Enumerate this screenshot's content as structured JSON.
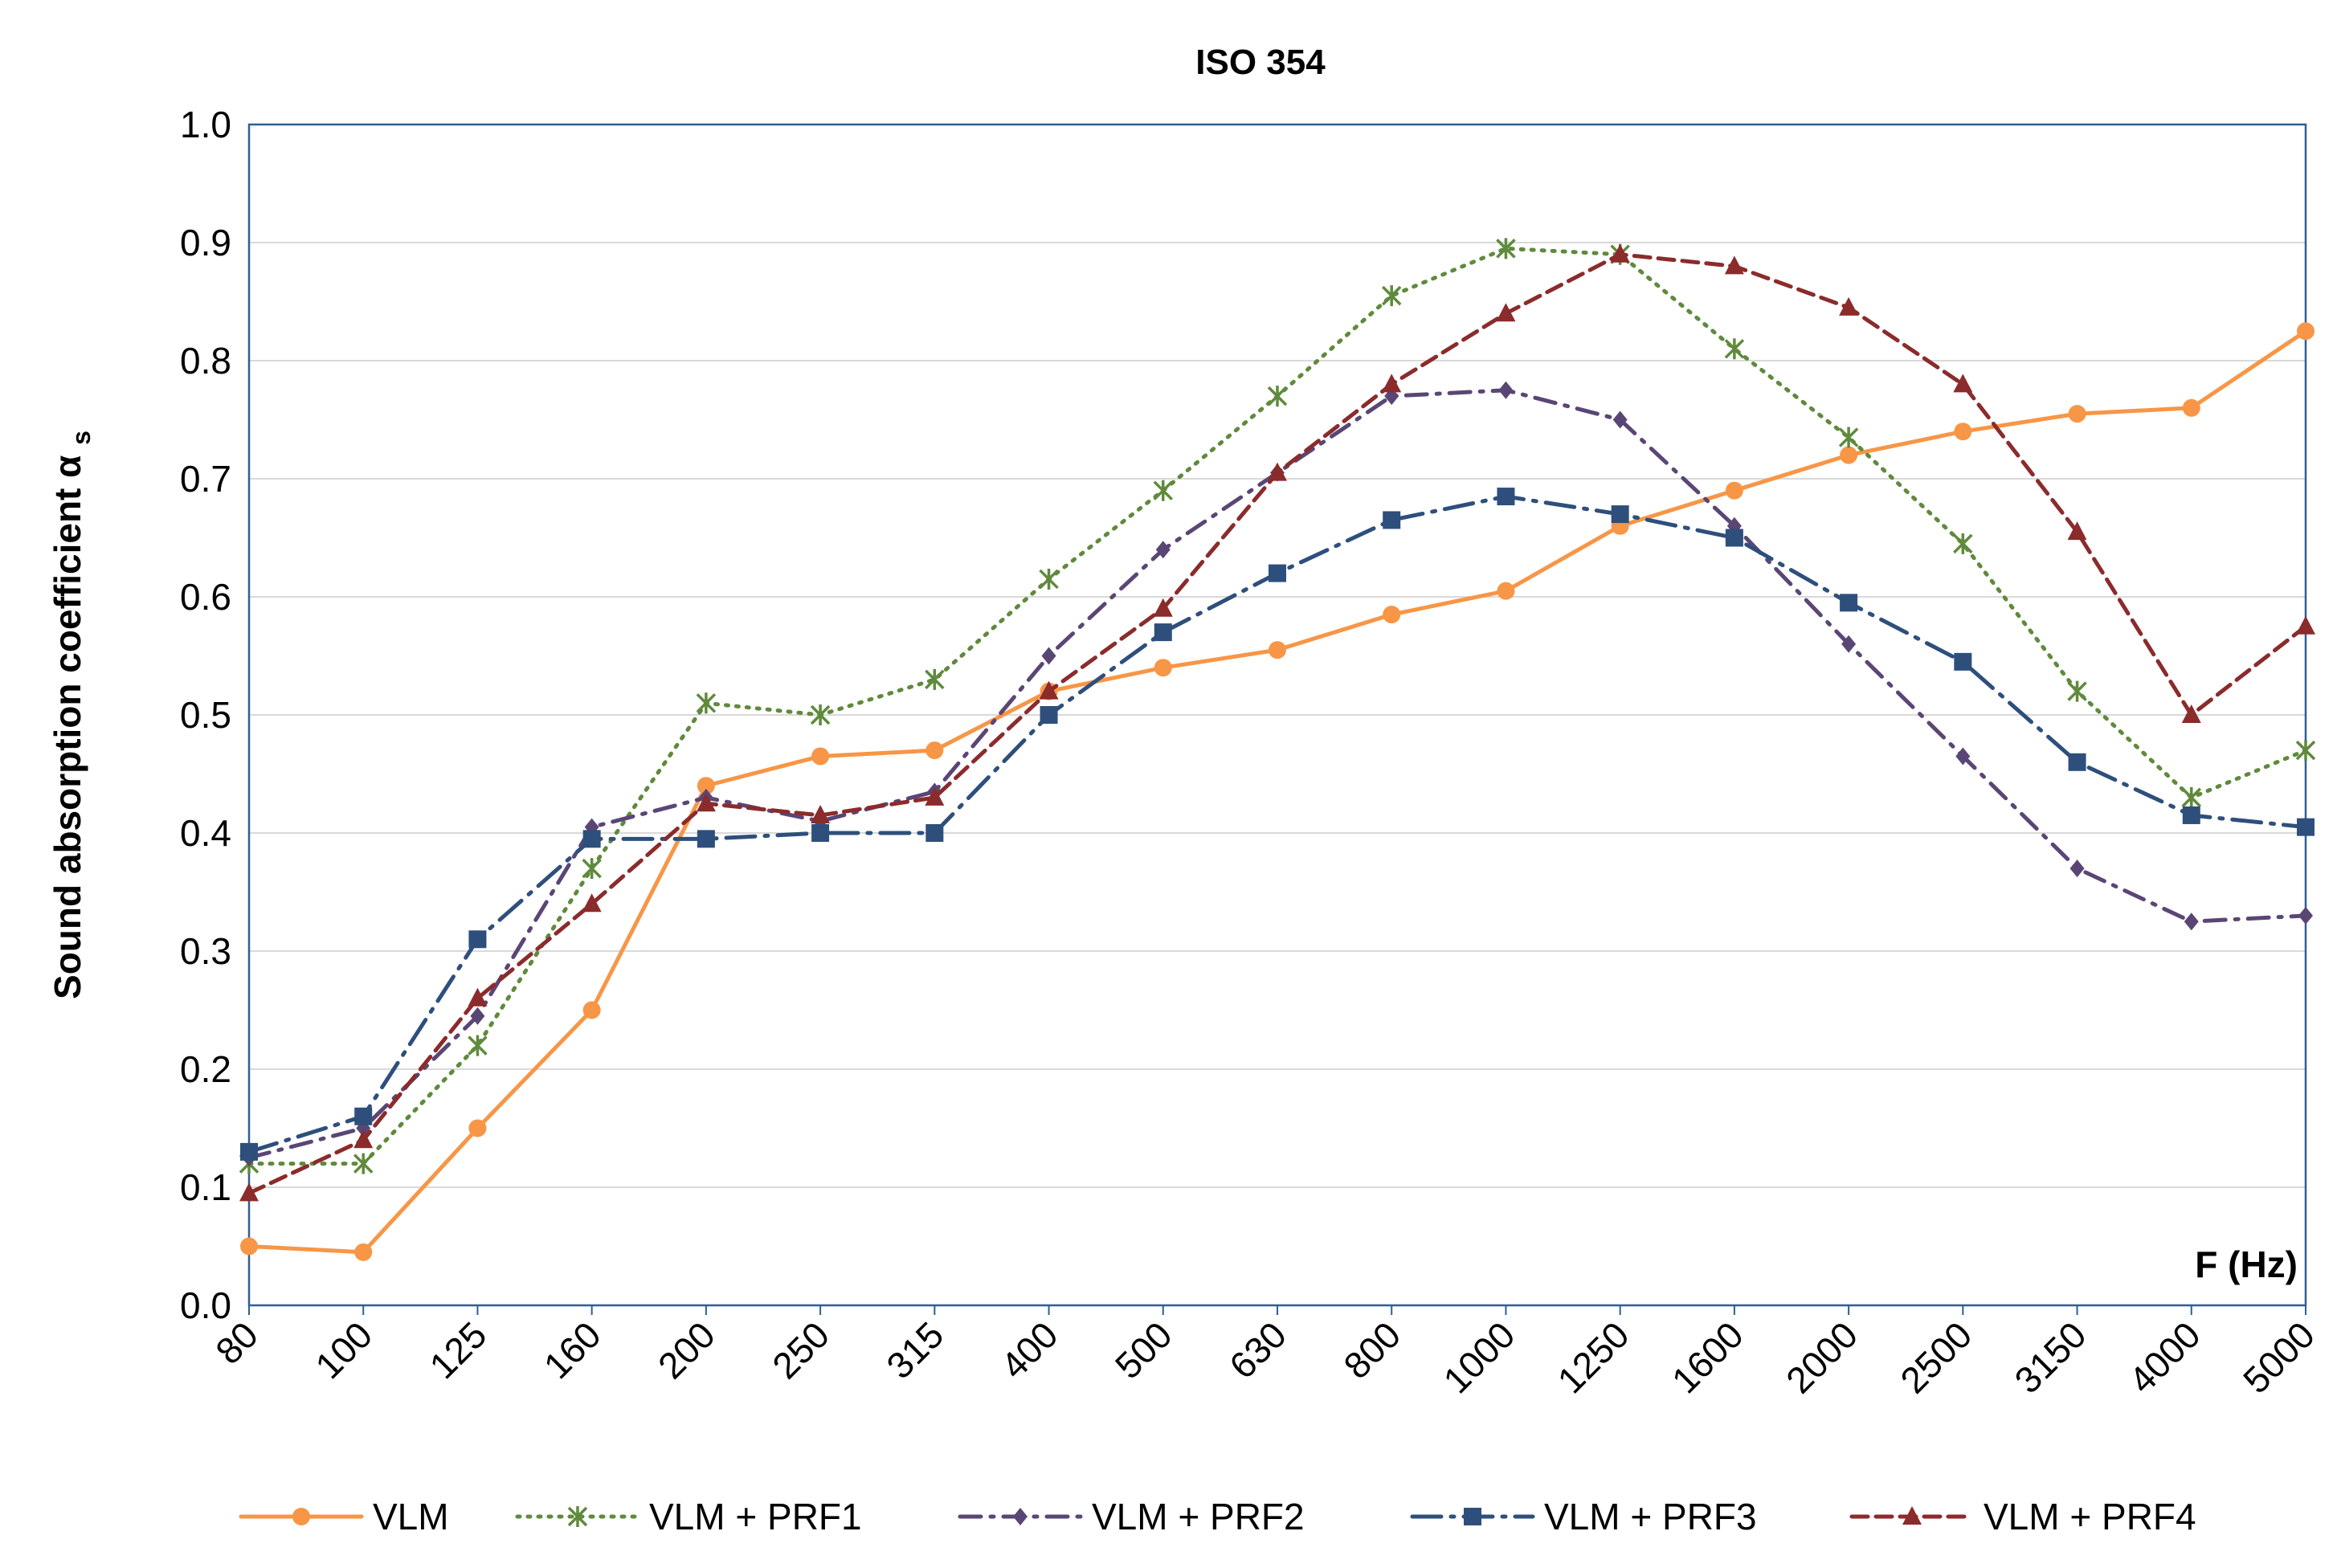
{
  "chart_data": {
    "type": "line",
    "title": "ISO 354",
    "xlabel": "F (Hz)",
    "ylabel": "Sound absorption coefficient",
    "ylabel_sub": "α",
    "ylabel_subscript": "s",
    "ylim": [
      0.0,
      1.0
    ],
    "yticks": [
      "0.0",
      "0.1",
      "0.2",
      "0.3",
      "0.4",
      "0.5",
      "0.6",
      "0.7",
      "0.8",
      "0.9",
      "1.0"
    ],
    "grid": true,
    "legend_position": "bottom",
    "categories": [
      "80",
      "100",
      "125",
      "160",
      "200",
      "250",
      "315",
      "400",
      "500",
      "630",
      "800",
      "1000",
      "1250",
      "1600",
      "2000",
      "2500",
      "3150",
      "4000",
      "5000"
    ],
    "series": [
      {
        "name": "VLM",
        "color": "#F79646",
        "marker": "circle",
        "dash": "solid",
        "values": [
          0.05,
          0.045,
          0.15,
          0.25,
          0.44,
          0.465,
          0.47,
          0.52,
          0.54,
          0.555,
          0.585,
          0.605,
          0.66,
          0.69,
          0.72,
          0.74,
          0.755,
          0.76,
          0.825
        ]
      },
      {
        "name": "VLM + PRF1",
        "color": "#5F8A3C",
        "marker": "asterisk",
        "dash": "dotted",
        "values": [
          0.12,
          0.12,
          0.22,
          0.37,
          0.51,
          0.5,
          0.53,
          0.615,
          0.69,
          0.77,
          0.855,
          0.895,
          0.89,
          0.81,
          0.735,
          0.645,
          0.52,
          0.43,
          0.47
        ]
      },
      {
        "name": "VLM + PRF2",
        "color": "#5A4675",
        "marker": "diamond",
        "dash": "dashdot",
        "values": [
          0.125,
          0.15,
          0.245,
          0.405,
          0.43,
          0.41,
          0.435,
          0.55,
          0.64,
          0.705,
          0.77,
          0.775,
          0.75,
          0.66,
          0.56,
          0.465,
          0.37,
          0.325,
          0.33
        ]
      },
      {
        "name": "VLM + PRF3",
        "color": "#2E4F7C",
        "marker": "square",
        "dash": "longdashdot",
        "values": [
          0.13,
          0.16,
          0.31,
          0.395,
          0.395,
          0.4,
          0.4,
          0.5,
          0.57,
          0.62,
          0.665,
          0.685,
          0.67,
          0.65,
          0.595,
          0.545,
          0.46,
          0.415,
          0.405
        ]
      },
      {
        "name": "VLM + PRF4",
        "color": "#8B2B2B",
        "marker": "triangle",
        "dash": "dashed",
        "values": [
          0.095,
          0.14,
          0.26,
          0.34,
          0.425,
          0.415,
          0.43,
          0.52,
          0.59,
          0.705,
          0.78,
          0.84,
          0.89,
          0.88,
          0.845,
          0.78,
          0.655,
          0.5,
          0.575
        ]
      }
    ]
  }
}
